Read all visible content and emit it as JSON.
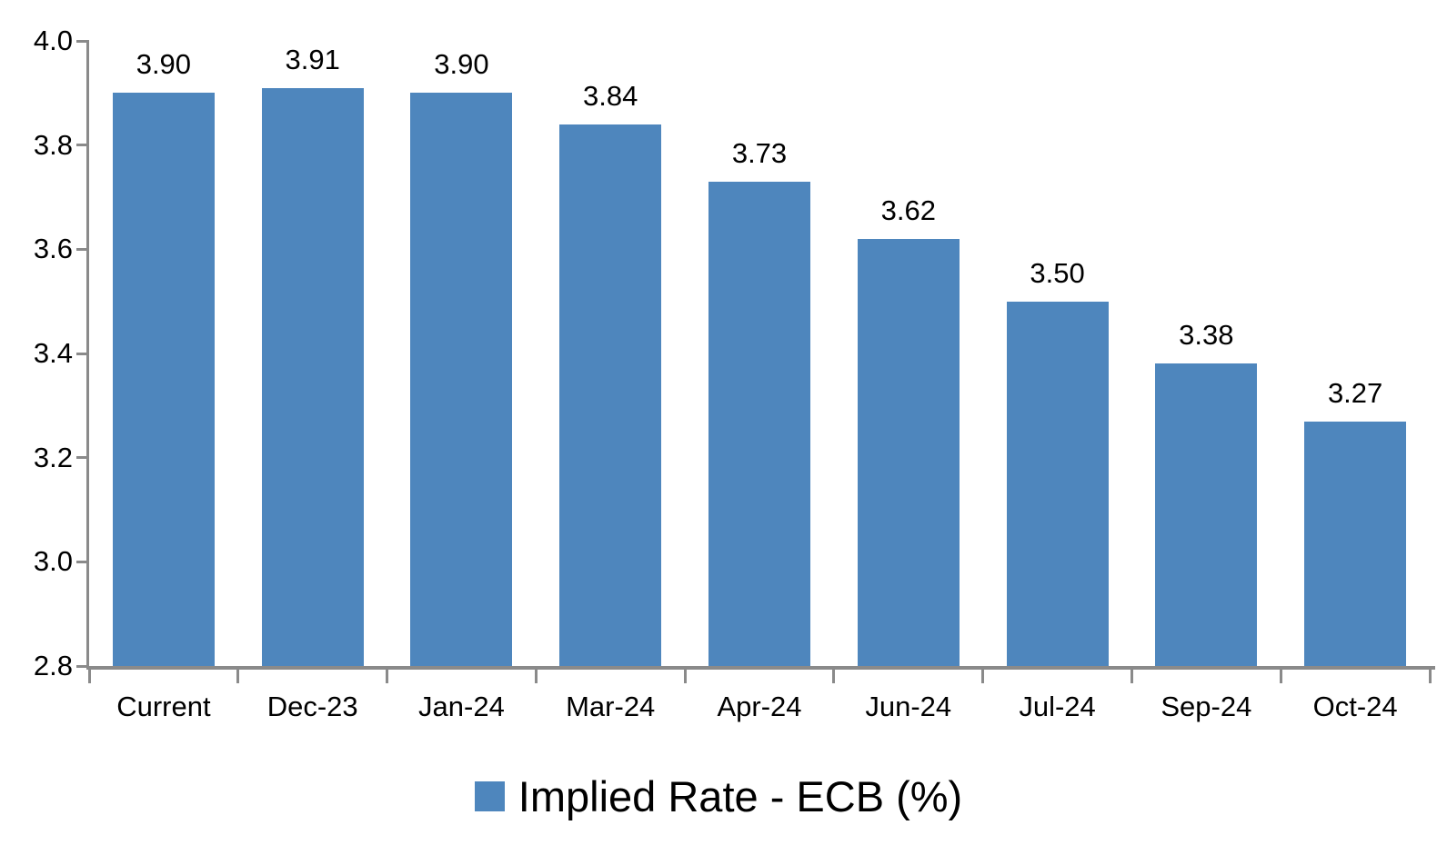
{
  "chart_data": {
    "type": "bar",
    "title": "",
    "legend": "Implied Rate - ECB (%)",
    "legend_position": "bottom-center",
    "categories": [
      "Current",
      "Dec-23",
      "Jan-24",
      "Mar-24",
      "Apr-24",
      "Jun-24",
      "Jul-24",
      "Sep-24",
      "Oct-24"
    ],
    "values": [
      3.9,
      3.91,
      3.9,
      3.84,
      3.73,
      3.62,
      3.5,
      3.38,
      3.27
    ],
    "data_labels": [
      "3.90",
      "3.91",
      "3.90",
      "3.84",
      "3.73",
      "3.62",
      "3.50",
      "3.38",
      "3.27"
    ],
    "xlabel": "",
    "ylabel": "",
    "ylim": [
      2.8,
      4.0
    ],
    "ytick_interval": 0.2,
    "ytick_labels": [
      "2.8",
      "3.0",
      "3.2",
      "3.4",
      "3.6",
      "3.8",
      "4.0"
    ],
    "grid": false,
    "bar_color": "#4E86BD",
    "axis_color": "#8A8A8A",
    "text_color": "#000000"
  }
}
